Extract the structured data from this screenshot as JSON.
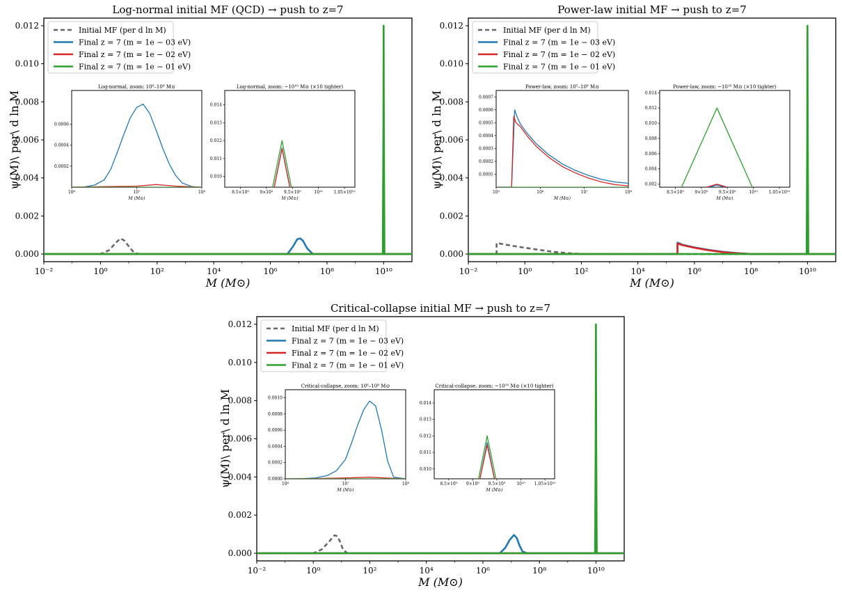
{
  "colors": {
    "initial": "#666666",
    "m1": "#1f77b4",
    "m2": "#d62728",
    "m3": "#2ca02c"
  },
  "legend_labels": [
    "Initial MF (per d ln M)",
    "Final z = 7 (m = 1e − 03 eV)",
    "Final z = 7 (m = 1e − 02 eV)",
    "Final z = 7 (m = 1e − 01 eV)"
  ],
  "chart_data": [
    {
      "type": "line",
      "title": "Log-normal initial MF (QCD) → push to z=7",
      "xlabel": "M (M⊙)",
      "ylabel": "ψ(M)\\ per\\ d ln M",
      "xscale": "log",
      "xlim": [
        -2,
        11
      ],
      "ylim": [
        -0.0004,
        0.0124
      ],
      "xticks": [
        "10⁻²",
        "10⁰",
        "10²",
        "10⁴",
        "10⁶",
        "10⁸",
        "10¹⁰"
      ],
      "yticks": [
        "0.000",
        "0.002",
        "0.004",
        "0.006",
        "0.008",
        "0.010",
        "0.012"
      ],
      "legend_position": "upper-left",
      "series": [
        {
          "key": "initial",
          "dashed": true,
          "x": [
            -2,
            0,
            0.3,
            0.55,
            0.7,
            0.85,
            1.0,
            1.2,
            1.4,
            11
          ],
          "y": [
            0,
            0,
            0.0002,
            0.0006,
            0.00082,
            0.0007,
            0.0004,
            5e-05,
            0,
            0
          ]
        },
        {
          "key": "m1",
          "x": [
            -2,
            6.6,
            6.8,
            6.95,
            7.05,
            7.15,
            7.3,
            7.5,
            11
          ],
          "y": [
            0,
            0,
            0.0004,
            0.00078,
            0.00082,
            0.0007,
            0.0003,
            0,
            0
          ]
        },
        {
          "key": "m2",
          "x": [
            -2,
            11
          ],
          "y": [
            0,
            0
          ]
        },
        {
          "key": "m3",
          "x": [
            -2,
            9.97,
            9.99,
            10.0,
            10.01,
            10.03,
            11
          ],
          "y": [
            0,
            0,
            0.006,
            0.012,
            0.006,
            0,
            0
          ]
        }
      ],
      "insets": [
        {
          "title": "Log-normal, zoom: 10⁶–10⁸ M⊙",
          "xscale": "log",
          "xlim": [
            6,
            8
          ],
          "ylim": [
            0,
            0.00092
          ],
          "xticks": [
            "10⁶",
            "10⁷",
            "10⁸"
          ],
          "yticks": [
            "0.0002",
            "0.0004",
            "0.0006"
          ],
          "xlabel": "M (M⊙)",
          "series": [
            {
              "key": "m1",
              "x": [
                6.0,
                6.2,
                6.35,
                6.5,
                6.6,
                6.7,
                6.8,
                6.9,
                7.0,
                7.1,
                7.2,
                7.3,
                7.4,
                7.5,
                7.6,
                7.7,
                7.85,
                8.0
              ],
              "y": [
                0,
                3e-06,
                2e-05,
                7e-05,
                0.00017,
                0.00033,
                0.0005,
                0.00066,
                0.00076,
                0.00079,
                0.0007,
                0.00054,
                0.00037,
                0.00022,
                0.00011,
                4e-05,
                5e-06,
                0
              ]
            },
            {
              "key": "m2",
              "x": [
                6.0,
                6.5,
                7.0,
                7.3,
                7.6,
                8.0
              ],
              "y": [
                0,
                5e-06,
                1e-05,
                2.5e-05,
                1e-05,
                0
              ]
            },
            {
              "key": "m3",
              "x": [
                6.0,
                8.0
              ],
              "y": [
                0,
                0
              ]
            }
          ]
        },
        {
          "title": "Log-normal, zoom: ~10¹⁰ M⊙ (×10 tighter)",
          "xscale": "linear",
          "xlim": [
            8.2,
            10.7
          ],
          "ylim": [
            0.0094,
            0.0148
          ],
          "xticks": [
            "8.5×10⁹",
            "9×10⁹",
            "9.5×10⁹",
            "10¹⁰",
            "1.05×10¹⁰"
          ],
          "yticks": [
            "0.010",
            "0.011",
            "0.012",
            "0.013",
            "0.014"
          ],
          "xlabel": "M (M⊙)",
          "series": [
            {
              "key": "m1",
              "x": [
                9.15,
                9.3,
                9.45
              ],
              "y": [
                0.0094,
                0.0116,
                0.0094
              ]
            },
            {
              "key": "m2",
              "x": [
                9.15,
                9.3,
                9.45
              ],
              "y": [
                0.0094,
                0.01155,
                0.0094
              ]
            },
            {
              "key": "m3",
              "x": [
                9.12,
                9.3,
                9.48
              ],
              "y": [
                0.0094,
                0.012,
                0.0094
              ]
            }
          ]
        }
      ]
    },
    {
      "type": "line",
      "title": "Power-law initial MF → push to z=7",
      "xlabel": "M (M⊙)",
      "ylabel": "ψ(M)\\ per\\ d ln M",
      "xscale": "log",
      "xlim": [
        -2,
        11
      ],
      "ylim": [
        -0.0004,
        0.0124
      ],
      "xticks": [
        "10⁻²",
        "10⁰",
        "10²",
        "10⁴",
        "10⁶",
        "10⁸",
        "10¹⁰"
      ],
      "yticks": [
        "0.000",
        "0.002",
        "0.004",
        "0.006",
        "0.008",
        "0.010",
        "0.012"
      ],
      "legend_position": "upper-left",
      "series": [
        {
          "key": "initial",
          "dashed": true,
          "x": [
            -2,
            -1,
            -1,
            -0.5,
            0,
            0.5,
            1,
            1.5,
            2,
            11
          ],
          "y": [
            0,
            0,
            0.00058,
            0.00045,
            0.00033,
            0.00022,
            0.00012,
            5e-05,
            0,
            0
          ]
        },
        {
          "key": "m1",
          "x": [
            -2,
            5.4,
            5.4,
            5.6,
            6,
            6.5,
            7,
            7.5,
            8,
            11
          ],
          "y": [
            0,
            0,
            0.0006,
            0.00048,
            0.00035,
            0.00022,
            0.00012,
            5e-05,
            0,
            0
          ]
        },
        {
          "key": "m2",
          "x": [
            -2,
            5.4,
            5.4,
            5.6,
            6,
            6.5,
            7,
            7.5,
            8,
            11
          ],
          "y": [
            0,
            0,
            0.00055,
            0.00046,
            0.00033,
            0.0002,
            0.0001,
            4e-05,
            0,
            0
          ]
        },
        {
          "key": "m3",
          "x": [
            -2,
            9.97,
            9.99,
            10.0,
            10.01,
            10.03,
            11
          ],
          "y": [
            0,
            0,
            0.006,
            0.012,
            0.006,
            0,
            0
          ]
        }
      ],
      "insets": [
        {
          "title": "Power-law, zoom: 10⁵–10⁸ M⊙",
          "xscale": "log",
          "xlim": [
            5,
            8
          ],
          "ylim": [
            0,
            0.00075
          ],
          "xticks": [
            "10⁵",
            "10⁶",
            "10⁷",
            "10⁸"
          ],
          "yticks": [
            "0.0001",
            "0.0002",
            "0.0003",
            "0.0004",
            "0.0005",
            "0.0006",
            "0.0007"
          ],
          "xlabel": "M (M⊙)",
          "series": [
            {
              "key": "m1",
              "x": [
                5.0,
                5.35,
                5.42,
                5.47,
                5.55,
                5.7,
                5.9,
                6.2,
                6.5,
                6.8,
                7.1,
                7.4,
                7.7,
                8.0
              ],
              "y": [
                0,
                0,
                0.0006,
                0.00055,
                0.00049,
                0.00042,
                0.00034,
                0.00025,
                0.00018,
                0.00013,
                9e-05,
                6e-05,
                4e-05,
                3e-05
              ]
            },
            {
              "key": "m2",
              "x": [
                5.0,
                5.35,
                5.4,
                5.45,
                5.55,
                5.7,
                5.9,
                6.2,
                6.5,
                6.8,
                7.1,
                7.4,
                7.7,
                8.0
              ],
              "y": [
                0,
                0,
                0.00055,
                0.0005,
                0.00047,
                0.0004,
                0.00032,
                0.00023,
                0.00016,
                0.00011,
                7e-05,
                4e-05,
                2e-05,
                1e-05
              ]
            },
            {
              "key": "m3",
              "x": [
                5.0,
                8.0
              ],
              "y": [
                0,
                0
              ]
            }
          ]
        },
        {
          "title": "Power-law, zoom: ~10¹⁰ M⊙ (×10 tighter)",
          "xscale": "linear",
          "xlim": [
            8.2,
            10.7
          ],
          "ylim": [
            0.0016,
            0.0143
          ],
          "xticks": [
            "8.5×10⁹",
            "9×10⁹",
            "9.5×10⁹",
            "10¹⁰",
            "1.05×10¹⁰"
          ],
          "yticks": [
            "0.002",
            "0.004",
            "0.006",
            "0.008",
            "0.010",
            "0.012",
            "0.014"
          ],
          "xlabel": "M (M⊙)",
          "series": [
            {
              "key": "m1",
              "x": [
                9.15,
                9.3,
                9.45
              ],
              "y": [
                0.0016,
                0.0019,
                0.0016
              ]
            },
            {
              "key": "m2",
              "x": [
                9.1,
                9.3,
                9.5
              ],
              "y": [
                0.0016,
                0.002,
                0.0016
              ]
            },
            {
              "key": "m3",
              "x": [
                8.62,
                9.3,
                9.98
              ],
              "y": [
                0.0016,
                0.012,
                0.0016
              ]
            }
          ]
        }
      ]
    },
    {
      "type": "line",
      "title": "Critical-collapse initial MF → push to z=7",
      "xlabel": "M (M⊙)",
      "ylabel": "ψ(M)\\ per\\ d ln M",
      "xscale": "log",
      "xlim": [
        -2,
        11
      ],
      "ylim": [
        -0.0004,
        0.0124
      ],
      "xticks": [
        "10⁻²",
        "10⁰",
        "10²",
        "10⁴",
        "10⁶",
        "10⁸",
        "10¹⁰"
      ],
      "yticks": [
        "0.000",
        "0.002",
        "0.004",
        "0.006",
        "0.008",
        "0.010",
        "0.012"
      ],
      "legend_position": "upper-left",
      "series": [
        {
          "key": "initial",
          "dashed": true,
          "x": [
            -2,
            0,
            0.3,
            0.55,
            0.75,
            0.85,
            0.95,
            1.05,
            1.2,
            11
          ],
          "y": [
            0,
            0,
            0.0002,
            0.0006,
            0.00094,
            0.0009,
            0.0006,
            0.0002,
            0,
            0
          ]
        },
        {
          "key": "m1",
          "x": [
            -2,
            6.6,
            6.8,
            6.95,
            7.1,
            7.2,
            7.3,
            7.4,
            7.55,
            11
          ],
          "y": [
            0,
            0,
            0.0003,
            0.0007,
            0.00096,
            0.0008,
            0.0004,
            0.0001,
            0,
            0
          ]
        },
        {
          "key": "m2",
          "x": [
            -2,
            11
          ],
          "y": [
            0,
            0
          ]
        },
        {
          "key": "m3",
          "x": [
            -2,
            9.97,
            9.99,
            10.0,
            10.01,
            10.03,
            11
          ],
          "y": [
            0,
            0,
            0.006,
            0.012,
            0.006,
            0,
            0
          ]
        }
      ],
      "insets": [
        {
          "title": "Critical-collapse, zoom: 10⁶–10⁸ M⊙",
          "xscale": "log",
          "xlim": [
            6,
            8
          ],
          "ylim": [
            0,
            0.0011
          ],
          "xticks": [
            "10⁶",
            "10⁷",
            "10⁸"
          ],
          "yticks": [
            "0.0000",
            "0.0002",
            "0.0004",
            "0.0006",
            "0.0008",
            "0.0010"
          ],
          "xlabel": "M (M⊙)",
          "series": [
            {
              "key": "m1",
              "x": [
                6.0,
                6.3,
                6.5,
                6.7,
                6.85,
                7.0,
                7.1,
                7.2,
                7.3,
                7.4,
                7.5,
                7.6,
                7.7,
                7.8,
                8.0
              ],
              "y": [
                0,
                3e-06,
                1e-05,
                4e-05,
                0.0001,
                0.00024,
                0.00044,
                0.00066,
                0.00085,
                0.00096,
                0.0009,
                0.0006,
                0.00022,
                2e-05,
                0
              ]
            },
            {
              "key": "m2",
              "x": [
                6.0,
                6.5,
                7.0,
                7.4,
                7.8,
                8.0
              ],
              "y": [
                0,
                3e-06,
                1e-05,
                2e-05,
                5e-06,
                0
              ]
            },
            {
              "key": "m3",
              "x": [
                6.0,
                8.0
              ],
              "y": [
                0,
                0
              ]
            }
          ]
        },
        {
          "title": "Critical-collapse, zoom: ~10¹⁰ M⊙ (×10 tighter)",
          "xscale": "linear",
          "xlim": [
            8.2,
            10.7
          ],
          "ylim": [
            0.0094,
            0.0148
          ],
          "xticks": [
            "8.5×10⁹",
            "9×10⁹",
            "9.5×10⁹",
            "10¹⁰",
            "1.05×10¹⁰"
          ],
          "yticks": [
            "0.010",
            "0.011",
            "0.012",
            "0.013",
            "0.014"
          ],
          "xlabel": "M (M⊙)",
          "series": [
            {
              "key": "m1",
              "x": [
                9.15,
                9.3,
                9.45
              ],
              "y": [
                0.0094,
                0.0116,
                0.0094
              ]
            },
            {
              "key": "m2",
              "x": [
                9.15,
                9.3,
                9.45
              ],
              "y": [
                0.0094,
                0.01145,
                0.0094
              ]
            },
            {
              "key": "m3",
              "x": [
                9.12,
                9.3,
                9.48
              ],
              "y": [
                0.0094,
                0.012,
                0.0094
              ]
            }
          ]
        }
      ]
    }
  ]
}
